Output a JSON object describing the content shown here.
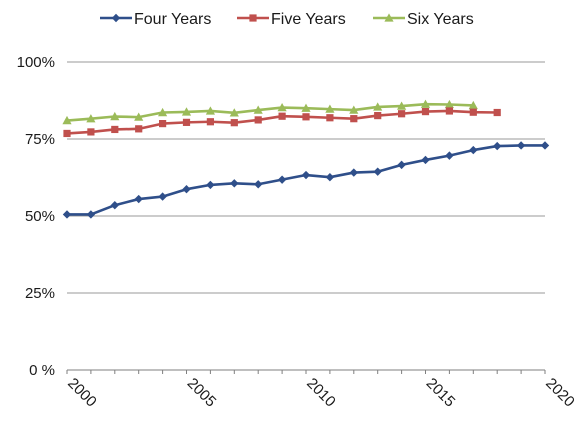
{
  "chart_data": {
    "type": "line",
    "title": "",
    "xlabel": "",
    "ylabel": "",
    "xlim": [
      2000,
      2020
    ],
    "ylim": [
      0,
      100
    ],
    "x_ticks": [
      2000,
      2005,
      2010,
      2015,
      2020
    ],
    "y_ticks": [
      0,
      25,
      50,
      75,
      100
    ],
    "y_tick_labels": [
      "0 %",
      "25%",
      "50%",
      "75%",
      "100%"
    ],
    "grid": "horizontal",
    "legend_position": "top",
    "series": [
      {
        "name": "Four Years",
        "color": "#2f4f8a",
        "marker": "diamond",
        "x": [
          2000,
          2001,
          2002,
          2003,
          2004,
          2005,
          2006,
          2007,
          2008,
          2009,
          2010,
          2011,
          2012,
          2013,
          2014,
          2015,
          2016,
          2017,
          2018,
          2019,
          2020
        ],
        "values": [
          50.5,
          50.5,
          53.5,
          55.5,
          56.3,
          58.7,
          60.1,
          60.6,
          60.3,
          61.8,
          63.3,
          62.6,
          64.1,
          64.4,
          66.6,
          68.2,
          69.6,
          71.4,
          72.7,
          72.9,
          72.9
        ]
      },
      {
        "name": "Five Years",
        "color": "#c0504d",
        "marker": "square",
        "x": [
          2000,
          2001,
          2002,
          2003,
          2004,
          2005,
          2006,
          2007,
          2008,
          2009,
          2010,
          2011,
          2012,
          2013,
          2014,
          2015,
          2016,
          2017,
          2018
        ],
        "values": [
          76.8,
          77.3,
          78.1,
          78.3,
          80.0,
          80.4,
          80.6,
          80.3,
          81.2,
          82.4,
          82.2,
          81.9,
          81.6,
          82.6,
          83.2,
          83.9,
          84.1,
          83.7,
          83.6
        ]
      },
      {
        "name": "Six Years",
        "color": "#9bbb59",
        "marker": "triangle",
        "x": [
          2000,
          2001,
          2002,
          2003,
          2004,
          2005,
          2006,
          2007,
          2008,
          2009,
          2010,
          2011,
          2012,
          2013,
          2014,
          2015,
          2016,
          2017
        ],
        "values": [
          81.0,
          81.6,
          82.3,
          82.1,
          83.6,
          83.8,
          84.1,
          83.5,
          84.4,
          85.2,
          85.0,
          84.7,
          84.4,
          85.4,
          85.7,
          86.3,
          86.2,
          85.9
        ]
      }
    ]
  }
}
